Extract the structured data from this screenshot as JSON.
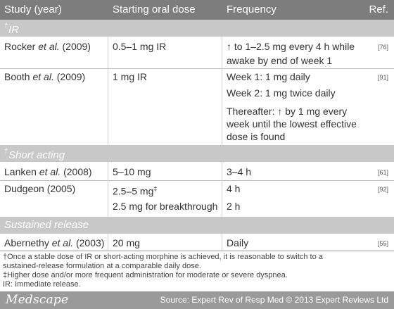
{
  "header": {
    "study": "Study (year)",
    "dose": "Starting oral dose",
    "frequency": "Frequency",
    "ref": "Ref."
  },
  "sections": {
    "ir": {
      "label": "IR",
      "mark": "†"
    },
    "short": {
      "label": "Short acting",
      "mark": "†"
    },
    "sustained": {
      "label": "Sustained release"
    }
  },
  "rows": {
    "rocker": {
      "author": "Rocker",
      "etal": "et al.",
      "year": "(2009)",
      "dose": "0.5–1 mg IR",
      "freq1": "↑ to 1–2.5 mg every 4 h while",
      "freq2": "awake by end of week 1",
      "ref": "[76]"
    },
    "booth": {
      "author": "Booth",
      "etal": "et al.",
      "year": "(2009)",
      "dose": "1 mg IR",
      "freq1": "Week 1: 1 mg daily",
      "freq2": "Week 2: 1 mg twice daily",
      "freq3": "Thereafter: ↑ by 1 mg every",
      "freq4": "week until the lowest effective",
      "freq5": "dose is found",
      "ref": "[91]"
    },
    "lanken": {
      "author": "Lanken",
      "etal": "et al.",
      "year": "(2008)",
      "dose": "5–10 mg",
      "freq": "3–4 h",
      "ref": "[61]"
    },
    "dudgeon": {
      "author": "Dudgeon (2005)",
      "dose1": "2.5–5 mg",
      "dose1_mark": "‡",
      "freq1": "4 h",
      "dose2": "2.5 mg for breakthrough",
      "freq2": "2 h",
      "ref": "[92]"
    },
    "abernethy": {
      "author": "Abernethy",
      "etal": "et al.",
      "year": "(2003)",
      "dose": "20 mg",
      "freq": "Daily",
      "ref": "[55]"
    }
  },
  "footnotes": {
    "f1a": "†Once a stable dose of IR or short-acting morphine is achieved, it is reasonable to switch to a",
    "f1b": "sustained-release formulation at a comparable daily dose.",
    "f2": "‡Higher dose and/or more frequent administration for moderate or severe dyspnea.",
    "f3": "IR: Immediate release."
  },
  "footer": {
    "logo": "Medscape",
    "source": "Source: Expert Rev of Resp Med © 2013 Expert Reviews Ltd"
  }
}
